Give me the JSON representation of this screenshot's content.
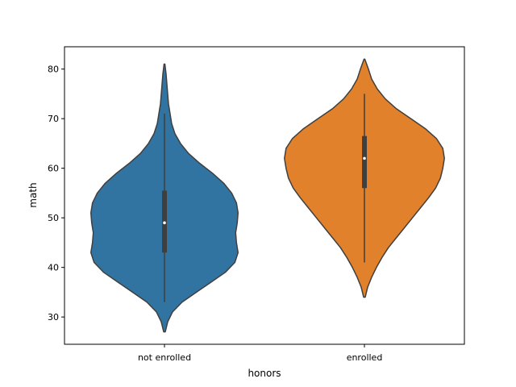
{
  "chart_data": {
    "type": "violin",
    "xlabel": "honors",
    "ylabel": "math",
    "categories": [
      "not enrolled",
      "enrolled"
    ],
    "ylim": [
      24.5,
      84.5
    ],
    "yticks": [
      30,
      40,
      50,
      60,
      70,
      80
    ],
    "grid": false,
    "colors": [
      "#3274a1",
      "#e1812c"
    ],
    "edge_color": "#3f3f3f",
    "violins": [
      {
        "category": "not enrolled",
        "min": 33,
        "q1": 43,
        "median": 49,
        "q3": 55.5,
        "max": 71,
        "whisker_low": 33,
        "whisker_high": 71,
        "kde_range": [
          27,
          81
        ],
        "density": [
          [
            27,
            0.01
          ],
          [
            29,
            0.04
          ],
          [
            31,
            0.1
          ],
          [
            33,
            0.22
          ],
          [
            35,
            0.4
          ],
          [
            37,
            0.58
          ],
          [
            39,
            0.76
          ],
          [
            41,
            0.88
          ],
          [
            43,
            0.92
          ],
          [
            45,
            0.9
          ],
          [
            47,
            0.89
          ],
          [
            49,
            0.91
          ],
          [
            51,
            0.92
          ],
          [
            53,
            0.9
          ],
          [
            55,
            0.84
          ],
          [
            57,
            0.74
          ],
          [
            59,
            0.6
          ],
          [
            61,
            0.44
          ],
          [
            63,
            0.3
          ],
          [
            65,
            0.2
          ],
          [
            67,
            0.13
          ],
          [
            69,
            0.09
          ],
          [
            71,
            0.07
          ],
          [
            73,
            0.05
          ],
          [
            75,
            0.04
          ],
          [
            77,
            0.03
          ],
          [
            79,
            0.02
          ],
          [
            81,
            0.005
          ]
        ]
      },
      {
        "category": "enrolled",
        "min": 41,
        "q1": 56,
        "median": 62,
        "q3": 66.5,
        "max": 75,
        "whisker_low": 41,
        "whisker_high": 75,
        "kde_range": [
          34,
          82
        ],
        "density": [
          [
            34,
            0.01
          ],
          [
            36,
            0.04
          ],
          [
            38,
            0.09
          ],
          [
            40,
            0.15
          ],
          [
            42,
            0.22
          ],
          [
            44,
            0.3
          ],
          [
            46,
            0.4
          ],
          [
            48,
            0.5
          ],
          [
            50,
            0.6
          ],
          [
            52,
            0.7
          ],
          [
            54,
            0.8
          ],
          [
            56,
            0.89
          ],
          [
            58,
            0.95
          ],
          [
            60,
            0.98
          ],
          [
            62,
            1.0
          ],
          [
            64,
            0.98
          ],
          [
            66,
            0.9
          ],
          [
            68,
            0.76
          ],
          [
            70,
            0.58
          ],
          [
            72,
            0.4
          ],
          [
            74,
            0.26
          ],
          [
            76,
            0.16
          ],
          [
            78,
            0.09
          ],
          [
            80,
            0.05
          ],
          [
            82,
            0.005
          ]
        ]
      }
    ]
  }
}
